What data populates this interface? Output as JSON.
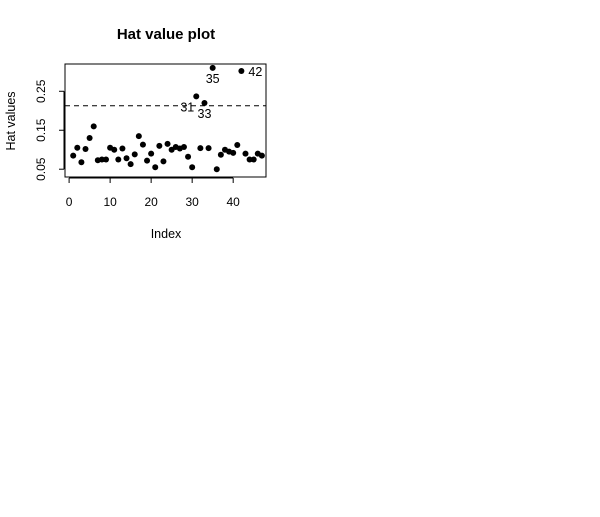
{
  "chart_data": {
    "type": "scatter",
    "title": "Hat value plot",
    "xlabel": "Index",
    "ylabel": "Hat values",
    "xlim": [
      -1,
      48
    ],
    "ylim": [
      0.03,
      0.32
    ],
    "x_ticks": [
      0,
      10,
      20,
      30,
      40
    ],
    "x_tick_labels": [
      "0",
      "10",
      "20",
      "30",
      "40"
    ],
    "y_ticks": [
      0.05,
      0.15,
      0.25
    ],
    "y_tick_labels": [
      "0.05",
      "0.15",
      "0.25"
    ],
    "reference_lines": [
      0.213,
      0.32
    ],
    "grid": false,
    "points": [
      {
        "x": 1,
        "y": 0.085
      },
      {
        "x": 2,
        "y": 0.105
      },
      {
        "x": 3,
        "y": 0.068
      },
      {
        "x": 4,
        "y": 0.102
      },
      {
        "x": 5,
        "y": 0.13
      },
      {
        "x": 6,
        "y": 0.16
      },
      {
        "x": 7,
        "y": 0.073
      },
      {
        "x": 8,
        "y": 0.075
      },
      {
        "x": 9,
        "y": 0.075
      },
      {
        "x": 10,
        "y": 0.105
      },
      {
        "x": 11,
        "y": 0.1
      },
      {
        "x": 12,
        "y": 0.075
      },
      {
        "x": 13,
        "y": 0.103
      },
      {
        "x": 14,
        "y": 0.078
      },
      {
        "x": 15,
        "y": 0.063
      },
      {
        "x": 16,
        "y": 0.088
      },
      {
        "x": 17,
        "y": 0.135
      },
      {
        "x": 18,
        "y": 0.113
      },
      {
        "x": 19,
        "y": 0.072
      },
      {
        "x": 20,
        "y": 0.09
      },
      {
        "x": 21,
        "y": 0.055
      },
      {
        "x": 22,
        "y": 0.11
      },
      {
        "x": 23,
        "y": 0.07
      },
      {
        "x": 24,
        "y": 0.115
      },
      {
        "x": 25,
        "y": 0.1
      },
      {
        "x": 26,
        "y": 0.107
      },
      {
        "x": 27,
        "y": 0.103
      },
      {
        "x": 28,
        "y": 0.107
      },
      {
        "x": 29,
        "y": 0.082
      },
      {
        "x": 30,
        "y": 0.055
      },
      {
        "x": 31,
        "y": 0.237
      },
      {
        "x": 32,
        "y": 0.104
      },
      {
        "x": 33,
        "y": 0.22
      },
      {
        "x": 34,
        "y": 0.104
      },
      {
        "x": 35,
        "y": 0.31
      },
      {
        "x": 36,
        "y": 0.05
      },
      {
        "x": 37,
        "y": 0.087
      },
      {
        "x": 38,
        "y": 0.1
      },
      {
        "x": 39,
        "y": 0.095
      },
      {
        "x": 40,
        "y": 0.092
      },
      {
        "x": 41,
        "y": 0.112
      },
      {
        "x": 42,
        "y": 0.302
      },
      {
        "x": 43,
        "y": 0.09
      },
      {
        "x": 44,
        "y": 0.075
      },
      {
        "x": 45,
        "y": 0.075
      },
      {
        "x": 46,
        "y": 0.09
      },
      {
        "x": 47,
        "y": 0.085
      }
    ],
    "point_labels": [
      {
        "x": 31,
        "y": 0.237,
        "text": "31",
        "pos": "below-left"
      },
      {
        "x": 33,
        "y": 0.22,
        "text": "33",
        "pos": "below"
      },
      {
        "x": 35,
        "y": 0.31,
        "text": "35",
        "pos": "below"
      },
      {
        "x": 42,
        "y": 0.302,
        "text": "42",
        "pos": "right"
      }
    ]
  }
}
